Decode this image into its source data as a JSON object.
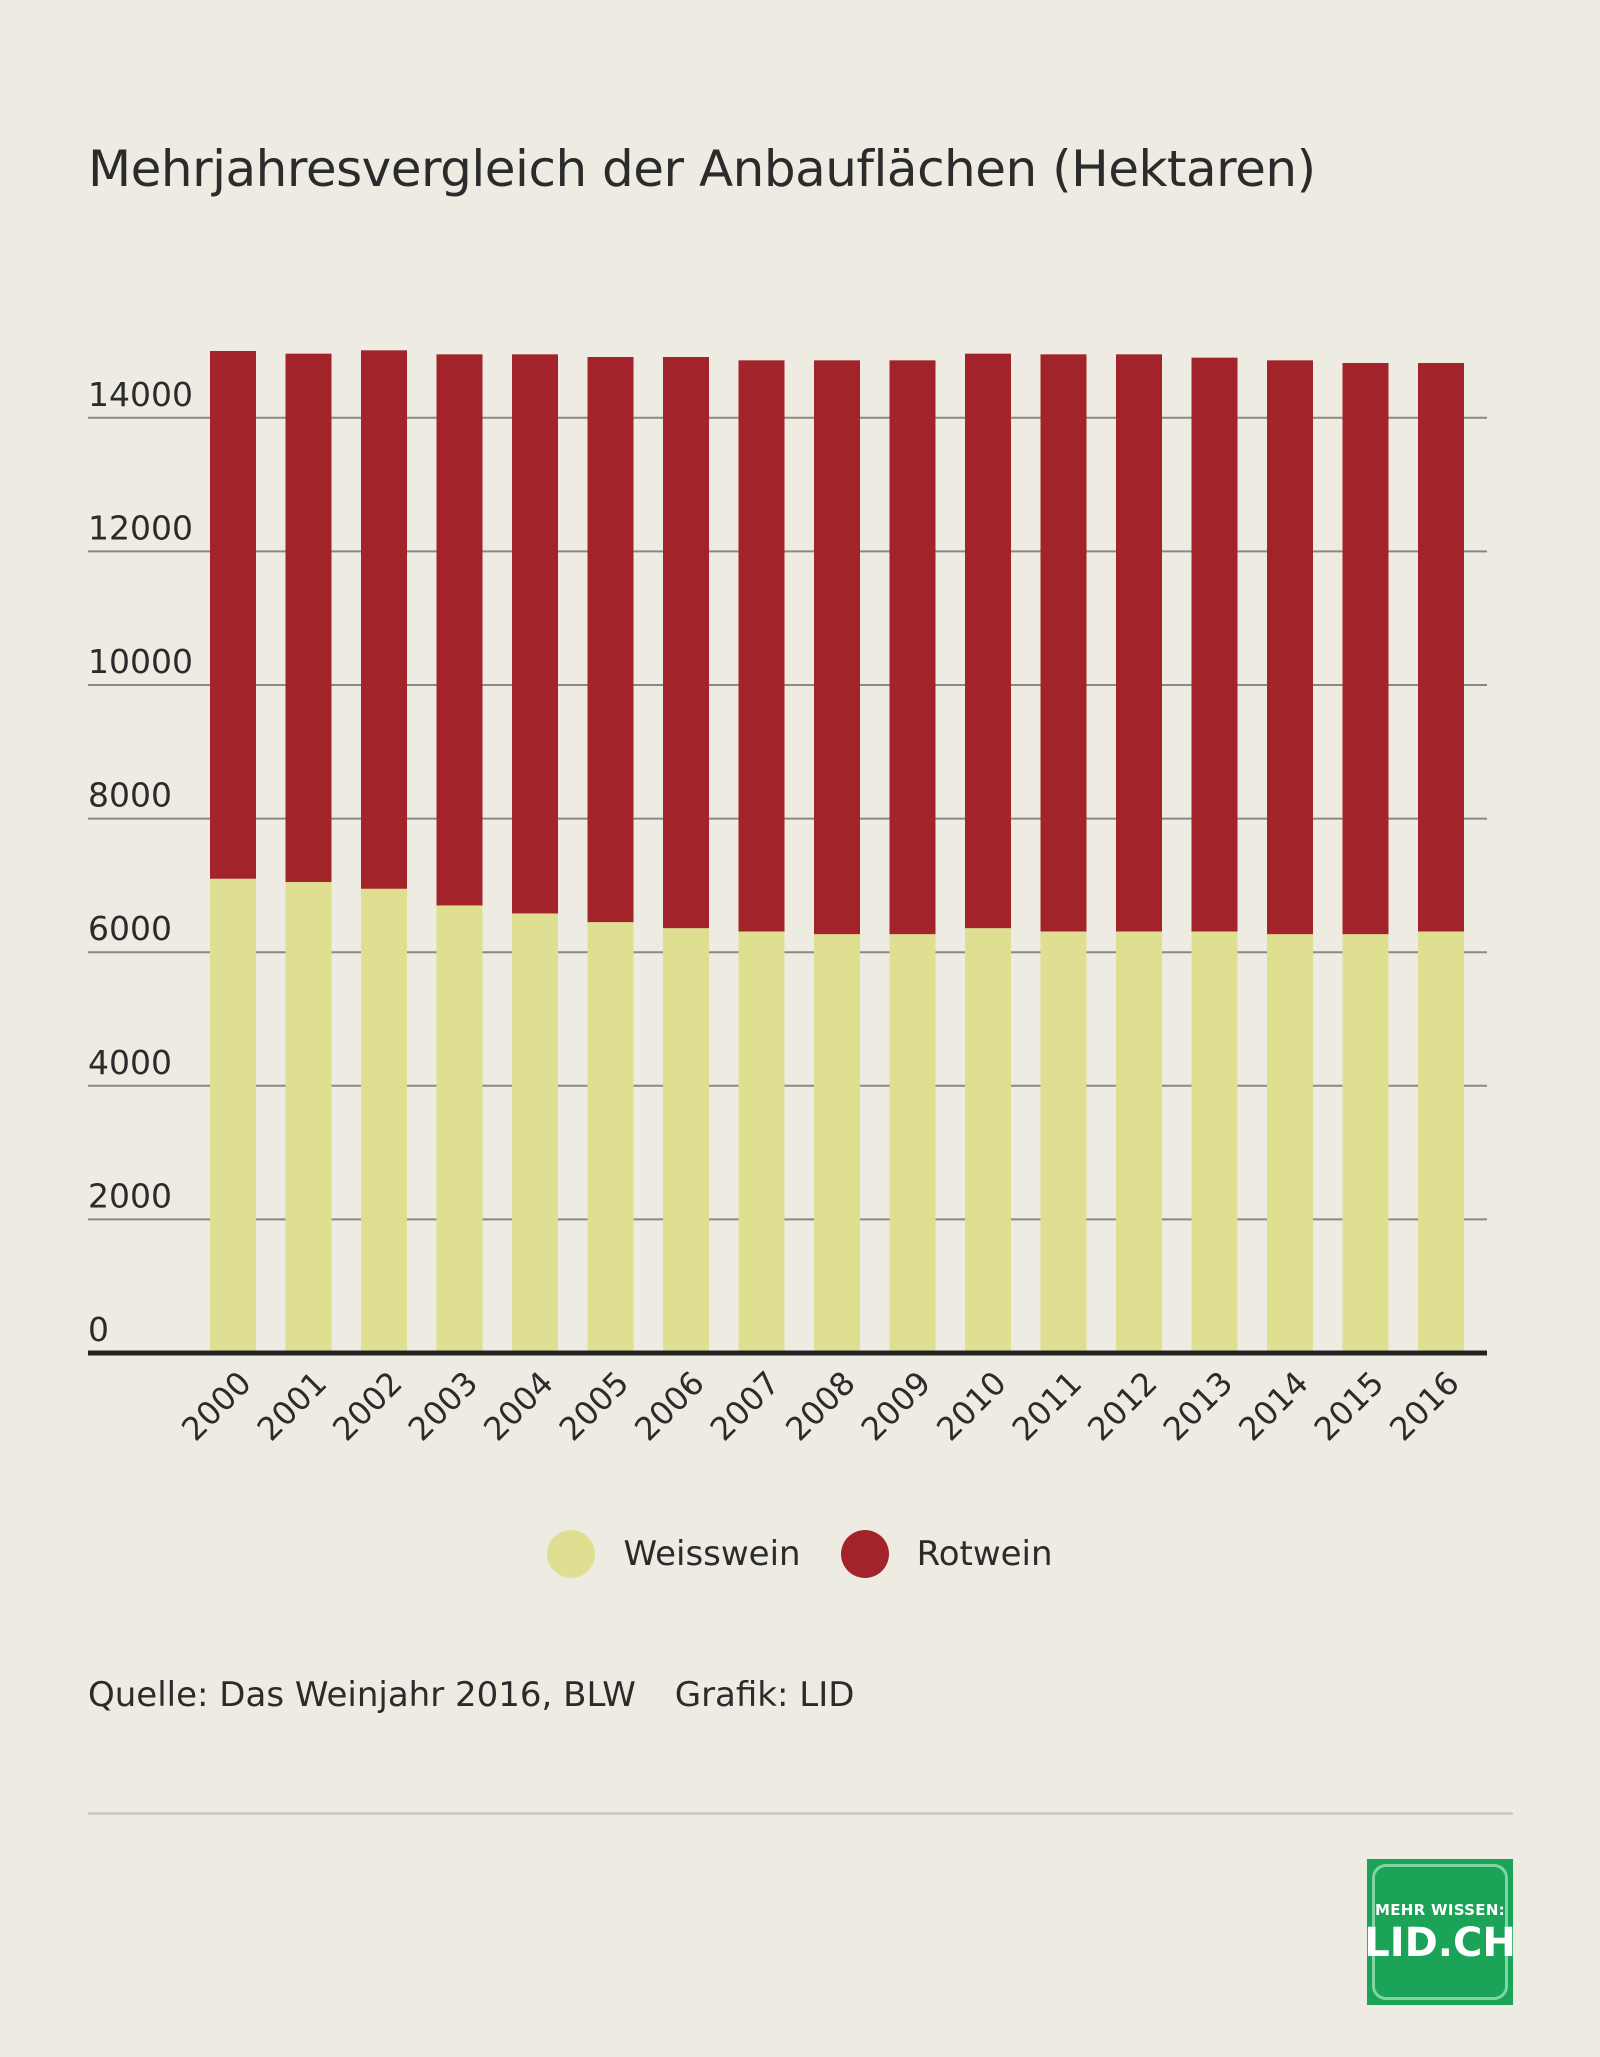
{
  "title": "Mehrjahresvergleich der Anbauflächen (Hektaren)",
  "chart_data": {
    "type": "bar",
    "stacked": true,
    "title": "Mehrjahresvergleich der Anbauflächen (Hektaren)",
    "xlabel": "",
    "ylabel": "",
    "ylim": [
      0,
      15000
    ],
    "yticks": [
      0,
      2000,
      4000,
      6000,
      8000,
      10000,
      12000,
      14000
    ],
    "grid": true,
    "legend_position": "bottom-center",
    "categories": [
      "2000",
      "2001",
      "2002",
      "2003",
      "2004",
      "2005",
      "2006",
      "2007",
      "2008",
      "2009",
      "2010",
      "2011",
      "2012",
      "2013",
      "2014",
      "2015",
      "2016"
    ],
    "series": [
      {
        "name": "Weisswein",
        "color": "#dfdf91",
        "values": [
          7100,
          7050,
          6950,
          6700,
          6580,
          6450,
          6360,
          6310,
          6270,
          6270,
          6360,
          6310,
          6310,
          6310,
          6270,
          6270,
          6310
        ]
      },
      {
        "name": "Rotwein",
        "color": "#a2232a",
        "values": [
          7900,
          7910,
          8060,
          8250,
          8370,
          8460,
          8550,
          8550,
          8590,
          8590,
          8600,
          8640,
          8640,
          8590,
          8590,
          8550,
          8510
        ]
      }
    ]
  },
  "legend": [
    {
      "label": "Weisswein",
      "color": "#dfdf91"
    },
    {
      "label": "Rotwein",
      "color": "#a2232a"
    }
  ],
  "source": {
    "quelle": "Quelle: Das Weinjahr 2016, BLW",
    "grafik": "Grafik: LID"
  },
  "logo": {
    "top": "MEHR WISSEN:",
    "main": "LID.CH"
  }
}
